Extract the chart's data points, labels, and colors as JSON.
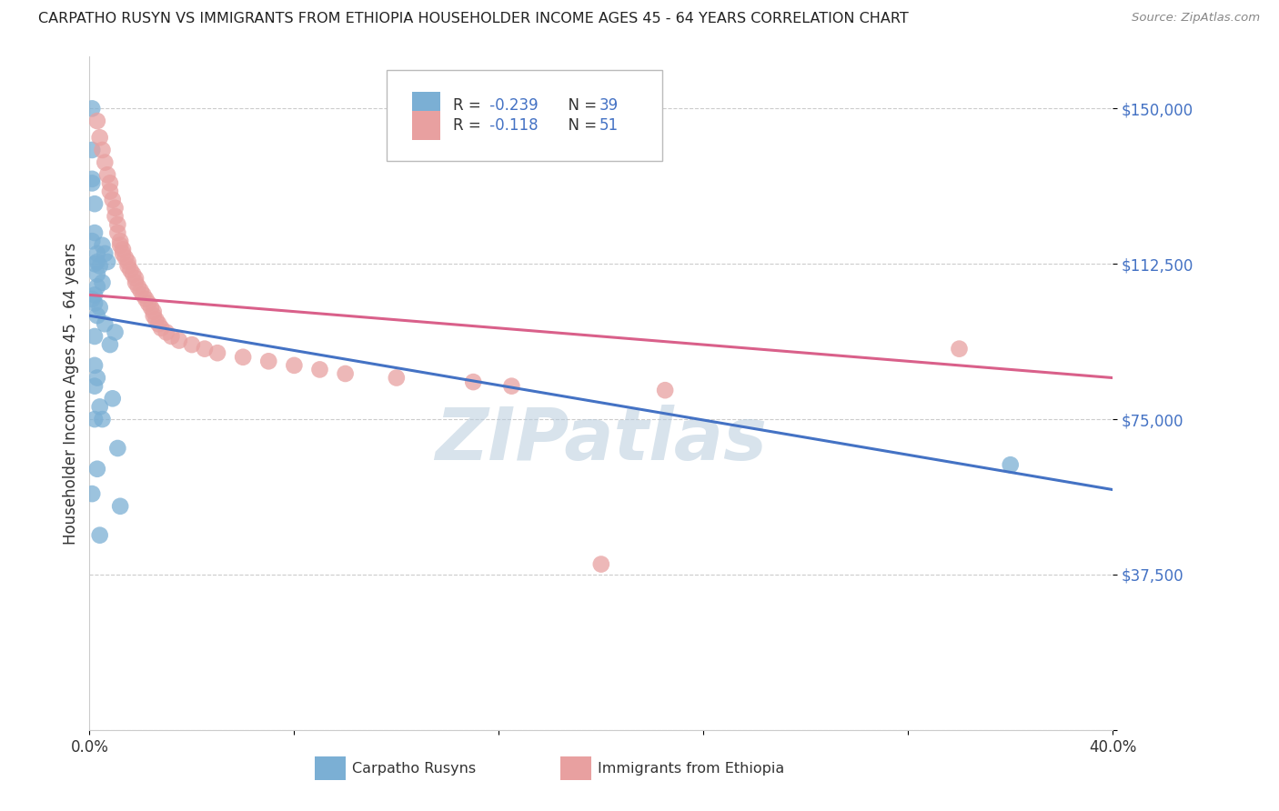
{
  "title": "CARPATHO RUSYN VS IMMIGRANTS FROM ETHIOPIA HOUSEHOLDER INCOME AGES 45 - 64 YEARS CORRELATION CHART",
  "source": "Source: ZipAtlas.com",
  "ylabel": "Householder Income Ages 45 - 64 years",
  "xlim": [
    0,
    0.4
  ],
  "ylim": [
    0,
    162500
  ],
  "ytick_positions": [
    0,
    37500,
    75000,
    112500,
    150000
  ],
  "ytick_labels": [
    "",
    "$37,500",
    "$75,000",
    "$112,500",
    "$150,000"
  ],
  "grid_color": "#cccccc",
  "background_color": "#ffffff",
  "blue_color": "#7bafd4",
  "pink_color": "#e8a0a0",
  "blue_line_color": "#4472c4",
  "pink_line_color": "#d9608a",
  "legend_R_blue": "-0.239",
  "legend_N_blue": "39",
  "legend_R_pink": "-0.118",
  "legend_N_pink": "51",
  "legend_label_blue": "Carpatho Rusyns",
  "legend_label_pink": "Immigrants from Ethiopia",
  "watermark": "ZIPatlas",
  "blue_line_x0": 0.0,
  "blue_line_y0": 100000,
  "blue_line_x1": 0.4,
  "blue_line_y1": 58000,
  "pink_line_x0": 0.0,
  "pink_line_y0": 105000,
  "pink_line_x1": 0.4,
  "pink_line_y1": 85000,
  "blue_x": [
    0.001,
    0.001,
    0.001,
    0.001,
    0.002,
    0.002,
    0.002,
    0.002,
    0.002,
    0.003,
    0.003,
    0.003,
    0.003,
    0.003,
    0.003,
    0.004,
    0.004,
    0.004,
    0.004,
    0.005,
    0.005,
    0.005,
    0.006,
    0.006,
    0.007,
    0.008,
    0.009,
    0.01,
    0.011,
    0.012,
    0.001,
    0.002,
    0.002,
    0.001,
    0.002,
    0.003,
    0.001,
    0.002,
    0.36
  ],
  "blue_y": [
    150000,
    140000,
    132000,
    57000,
    127000,
    120000,
    112500,
    105000,
    88000,
    115000,
    113000,
    110000,
    107000,
    100000,
    63000,
    112000,
    102000,
    78000,
    47000,
    117000,
    108000,
    75000,
    115000,
    98000,
    113000,
    93000,
    80000,
    96000,
    68000,
    54000,
    133000,
    103000,
    95000,
    104000,
    83000,
    85000,
    118000,
    75000,
    64000
  ],
  "pink_x": [
    0.003,
    0.004,
    0.005,
    0.006,
    0.007,
    0.008,
    0.008,
    0.009,
    0.01,
    0.01,
    0.011,
    0.011,
    0.012,
    0.012,
    0.013,
    0.013,
    0.014,
    0.015,
    0.015,
    0.016,
    0.017,
    0.018,
    0.018,
    0.019,
    0.02,
    0.021,
    0.022,
    0.023,
    0.024,
    0.025,
    0.025,
    0.026,
    0.027,
    0.028,
    0.03,
    0.032,
    0.035,
    0.04,
    0.045,
    0.05,
    0.06,
    0.07,
    0.08,
    0.09,
    0.1,
    0.12,
    0.15,
    0.165,
    0.2,
    0.34,
    0.225
  ],
  "pink_y": [
    147000,
    143000,
    140000,
    137000,
    134000,
    132000,
    130000,
    128000,
    126000,
    124000,
    122000,
    120000,
    118000,
    117000,
    116000,
    115000,
    114000,
    113000,
    112000,
    111000,
    110000,
    109000,
    108000,
    107000,
    106000,
    105000,
    104000,
    103000,
    102000,
    101000,
    100000,
    99000,
    98000,
    97000,
    96000,
    95000,
    94000,
    93000,
    92000,
    91000,
    90000,
    89000,
    88000,
    87000,
    86000,
    85000,
    84000,
    83000,
    40000,
    92000,
    82000
  ]
}
